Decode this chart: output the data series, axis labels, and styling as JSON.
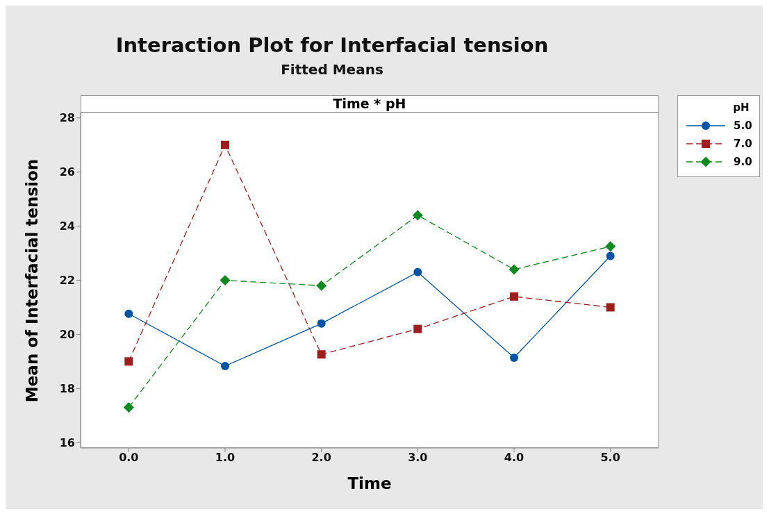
{
  "chart_data": {
    "type": "line",
    "title": "Interaction Plot for Interfacial tension",
    "subtitle": "Fitted Means",
    "annotations": [
      "Time * pH"
    ],
    "xlabel": "Time",
    "ylabel": "Mean of Interfacial tension",
    "legend_title": "pH",
    "categories": [
      "0.0",
      "1.0",
      "2.0",
      "3.0",
      "4.0",
      "5.0"
    ],
    "series": [
      {
        "name": "5.0",
        "color": "#0054a6",
        "marker": "circle",
        "line_style": "solid",
        "values": [
          20.76,
          18.83,
          20.4,
          22.3,
          19.14,
          22.9
        ]
      },
      {
        "name": "7.0",
        "color": "#a01d1d",
        "marker": "square",
        "line_style": "dashed",
        "values": [
          19.0,
          27.0,
          19.26,
          20.2,
          21.4,
          21.0
        ]
      },
      {
        "name": "9.0",
        "color": "#0f8a1f",
        "marker": "diamond",
        "line_style": "dashed",
        "values": [
          17.3,
          22.0,
          21.8,
          24.4,
          22.4,
          23.25
        ]
      }
    ],
    "ylim": [
      15.8,
      28.2
    ],
    "yticks": [
      16,
      18,
      20,
      22,
      24,
      26,
      28
    ],
    "legend": "top right"
  }
}
